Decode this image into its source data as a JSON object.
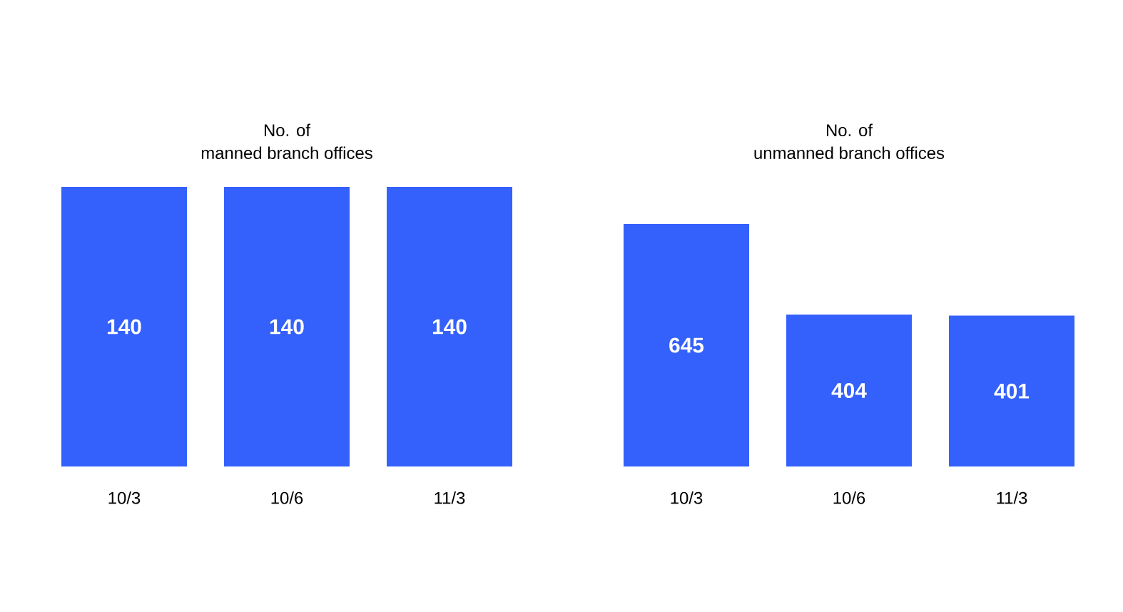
{
  "chart_data": [
    {
      "type": "bar",
      "title": "No. of\nmanned branch offices",
      "categories": [
        "10/3",
        "10/6",
        "11/3"
      ],
      "values": [
        140,
        140,
        140
      ],
      "color": "#3461fb",
      "data_labels": true,
      "tick_labels": "x"
    },
    {
      "type": "bar",
      "title": "No. of\nunmanned branch offices",
      "categories": [
        "10/3",
        "10/6",
        "11/3"
      ],
      "values": [
        645,
        404,
        401
      ],
      "color": "#3461fb",
      "data_labels": true,
      "tick_labels": "x"
    }
  ]
}
